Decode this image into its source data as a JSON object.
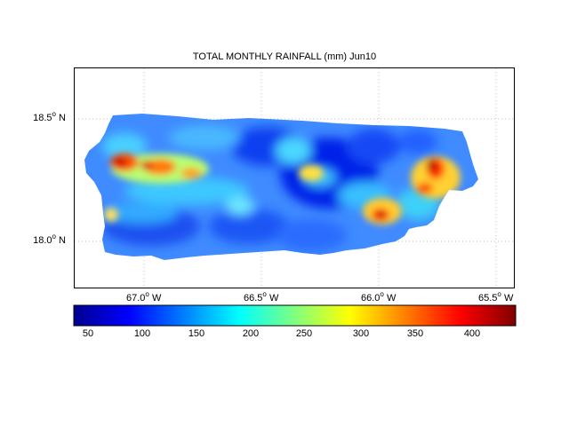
{
  "title": "TOTAL MONTHLY RAINFALL (mm) Jun10",
  "map": {
    "region": "Puerto Rico",
    "variable": "total monthly rainfall",
    "units": "mm",
    "period": "Jun10",
    "lat_ticks": [
      {
        "label": "18.5",
        "hemisphere": "N",
        "value": 18.5
      },
      {
        "label": "18.0",
        "hemisphere": "N",
        "value": 18.0
      }
    ],
    "lon_ticks": [
      {
        "label": "67.0",
        "hemisphere": "W",
        "value": -67.0
      },
      {
        "label": "66.5",
        "hemisphere": "W",
        "value": -66.5
      },
      {
        "label": "66.0",
        "hemisphere": "W",
        "value": -66.0
      },
      {
        "label": "65.5",
        "hemisphere": "W",
        "value": -65.5
      }
    ],
    "lat_range": [
      17.8,
      18.7
    ],
    "lon_range": [
      -67.3,
      -65.5
    ],
    "grid": "dotted"
  },
  "colorbar": {
    "colormap": "jet",
    "range": [
      25,
      435
    ],
    "ticks": [
      "50",
      "100",
      "150",
      "200",
      "250",
      "300",
      "350",
      "400"
    ]
  },
  "features": [
    {
      "name": "west highland maximum",
      "lon": -66.95,
      "lat": 18.29,
      "value": 390
    },
    {
      "name": "central highland band",
      "lon": -66.75,
      "lat": 18.28,
      "value": 330
    },
    {
      "name": "El Yunque maximum",
      "lon": -65.75,
      "lat": 18.31,
      "value": 420
    },
    {
      "name": "east-central maximum",
      "lon": -66.0,
      "lat": 18.11,
      "value": 380
    },
    {
      "name": "central minimum",
      "lon": -66.4,
      "lat": 18.22,
      "value": 60
    }
  ]
}
